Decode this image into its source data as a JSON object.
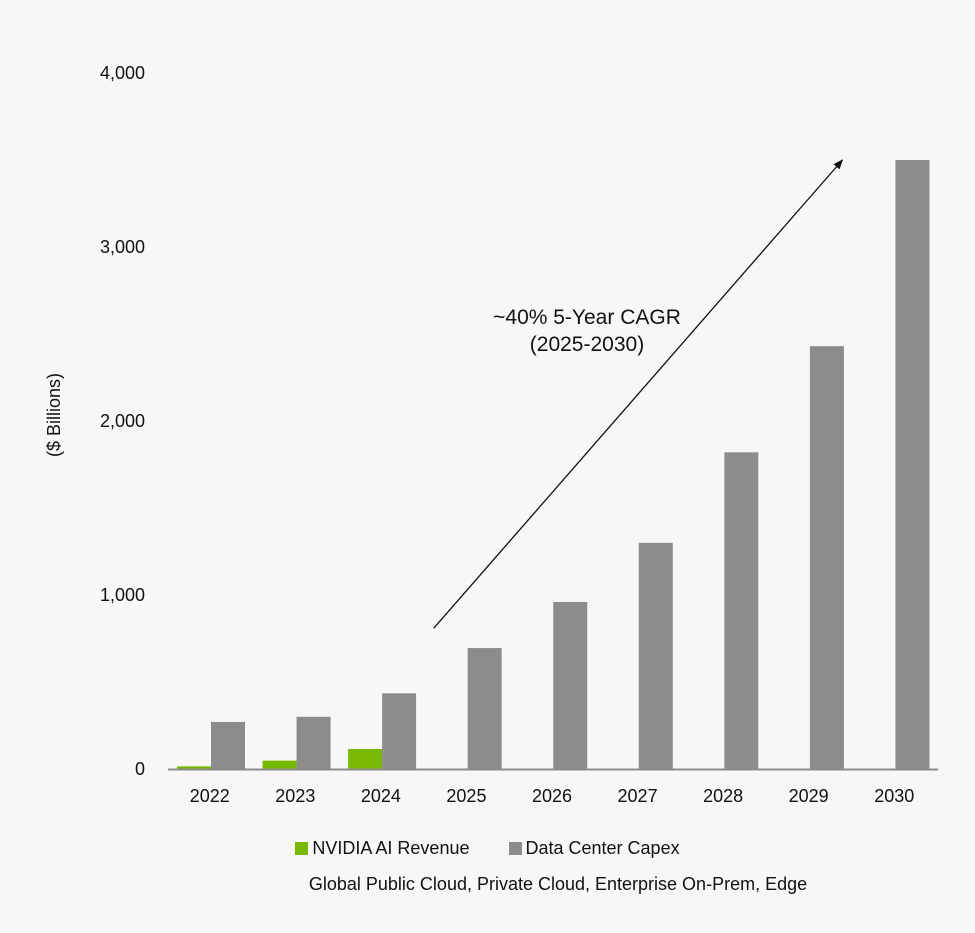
{
  "colors": {
    "nvidia": "#76b900",
    "capex": "#8c8c8c",
    "axis": "#8c8c8c",
    "background": "#f7f7f7"
  },
  "note": "Global Public Cloud, Private Cloud, Enterprise On-Prem, Edge",
  "chart_data": {
    "type": "bar",
    "ylabel": "($ Billions)",
    "xlabel": "",
    "ylim": [
      0,
      4000
    ],
    "yticks": [
      "0",
      "1,000",
      "2,000",
      "3,000",
      "4,000"
    ],
    "ytick_values": [
      0,
      1000,
      2000,
      3000,
      4000
    ],
    "grid": false,
    "legend_position": "bottom",
    "categories": [
      "2022",
      "2023",
      "2024",
      "2025",
      "2026",
      "2027",
      "2028",
      "2029",
      "2030"
    ],
    "series": [
      {
        "name": "NVIDIA AI Revenue",
        "color": "#76b900",
        "values": [
          15,
          48,
          115,
          null,
          null,
          null,
          null,
          null,
          null
        ]
      },
      {
        "name": "Data Center Capex",
        "color": "#8c8c8c",
        "values": [
          270,
          300,
          435,
          695,
          960,
          1300,
          1820,
          2430,
          3500
        ]
      }
    ],
    "annotations": [
      {
        "text_lines": [
          "~40% 5-Year CAGR",
          "(2025-2030)"
        ],
        "arrow_from": [
          "2025",
          820
        ],
        "arrow_to": [
          "2030",
          3500
        ]
      }
    ]
  }
}
